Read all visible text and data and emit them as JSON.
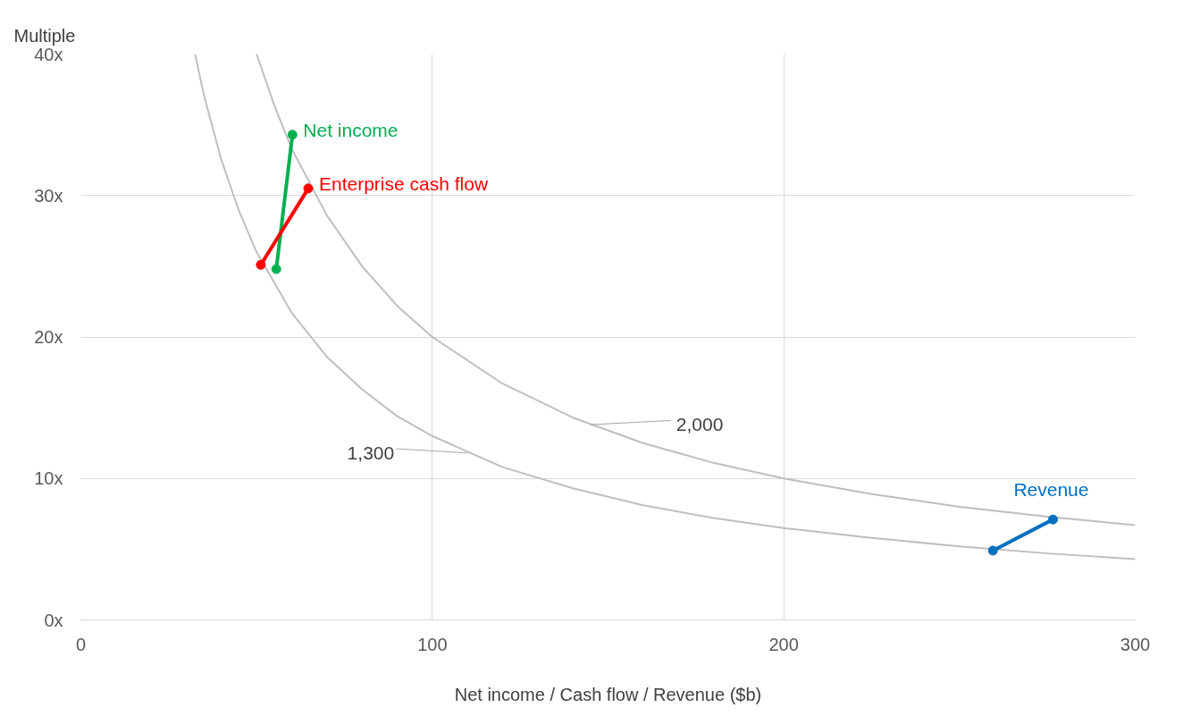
{
  "chart_data": {
    "type": "line",
    "xlabel": "Net income / Cash flow / Revenue ($b)",
    "ylabel": "Multiple",
    "xlim": [
      0,
      300
    ],
    "ylim": [
      0,
      40
    ],
    "xticks": [
      0,
      100,
      200,
      300
    ],
    "yticks": [
      {
        "value": 0,
        "label": "0x"
      },
      {
        "value": 10,
        "label": "10x"
      },
      {
        "value": 20,
        "label": "20x"
      },
      {
        "value": 30,
        "label": "30x"
      },
      {
        "value": 40,
        "label": "40x"
      }
    ],
    "grid": true,
    "marker": "circle",
    "line_style": "solid",
    "series": [
      {
        "color": "#bfbfbf",
        "marker": "none",
        "x": [
          32.5,
          35,
          40,
          45,
          50,
          60,
          70,
          80,
          90,
          100,
          120,
          140,
          160,
          180,
          200,
          225,
          250,
          275,
          300
        ],
        "values": [
          40,
          37.1,
          32.5,
          28.9,
          26,
          21.7,
          18.6,
          16.3,
          14.4,
          13,
          10.8,
          9.3,
          8.1,
          7.2,
          6.5,
          5.8,
          5.2,
          4.7,
          4.3
        ]
      },
      {
        "color": "#bfbfbf",
        "marker": "none",
        "x": [
          50,
          55,
          60,
          70,
          80,
          90,
          100,
          120,
          140,
          160,
          180,
          200,
          225,
          250,
          275,
          300
        ],
        "values": [
          40,
          36.4,
          33.3,
          28.6,
          25,
          22.2,
          20,
          16.7,
          14.3,
          12.5,
          11.1,
          10,
          8.9,
          8,
          7.3,
          6.7
        ]
      },
      {
        "name": "Net income",
        "color": "#00b050",
        "x": [
          55.6,
          60.2
        ],
        "values": [
          24.8,
          34.3
        ]
      },
      {
        "name": "Enterprise cash flow",
        "color": "#ff0000",
        "x": [
          51.2,
          64.7
        ],
        "values": [
          25.1,
          30.5
        ]
      },
      {
        "name": "Revenue",
        "color": "#0070c0",
        "x": [
          259.5,
          276.6
        ],
        "values": [
          4.9,
          7.1
        ]
      }
    ],
    "annotations": [
      {
        "text": "1,300",
        "x": 110,
        "y": 11.8
      },
      {
        "text": "2,000",
        "x": 145,
        "y": 13.8
      }
    ]
  }
}
